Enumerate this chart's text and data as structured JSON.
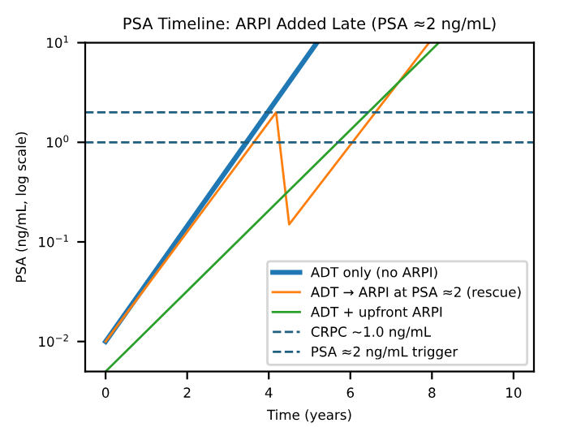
{
  "chart_data": {
    "type": "line",
    "title": "PSA Timeline: ARPI Added Late (PSA ≈2 ng/mL)",
    "xlabel": "Time (years)",
    "ylabel": "PSA (ng/mL, log scale)",
    "log": "y",
    "xlim": [
      -0.5,
      10.5
    ],
    "xticks": [
      0,
      2,
      4,
      6,
      8,
      10
    ],
    "ylim": [
      0.005,
      10
    ],
    "yticks": [
      {
        "value": 0.01,
        "label": "10$^{−2}$"
      },
      {
        "value": 0.1,
        "label": "10$^{−1}$"
      },
      {
        "value": 1,
        "label": "10$^{0}$"
      },
      {
        "value": 10,
        "label": "10$^{1}$"
      }
    ],
    "series": [
      {
        "name": "ADT only (no ARPI)",
        "color": "#1f77b4",
        "x": [
          0,
          5.18
        ],
        "values": [
          0.01,
          10
        ]
      },
      {
        "name": "ADT → ARPI at PSA ≈2 (rescue)",
        "color": "#ff7f0e",
        "x": [
          0,
          4.18,
          4.5,
          7.93
        ],
        "values": [
          0.01,
          2,
          0.15,
          10
        ]
      },
      {
        "name": "ADT + upfront ARPI",
        "color": "#2ca02c",
        "x": [
          0,
          8.17
        ],
        "values": [
          0.005,
          10
        ]
      }
    ],
    "ref_lines": [
      {
        "axis": "y",
        "value": 1,
        "label": "CRPC ~1.0 ng/mL",
        "color": "#1f5f7f",
        "line_style": "dashed"
      },
      {
        "axis": "y",
        "value": 2,
        "label": "PSA ≈2 ng/mL trigger",
        "color": "#1f5f7f",
        "line_style": "dashed"
      }
    ],
    "legend": "bottom right",
    "grid": false
  }
}
